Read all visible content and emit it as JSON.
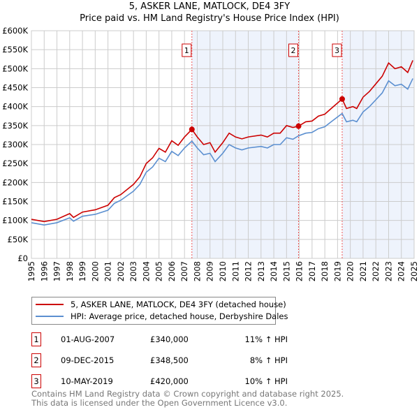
{
  "chart_data": {
    "type": "line",
    "title": "5, ASKER LANE, MATLOCK, DE4 3FY",
    "subtitle": "Price paid vs. HM Land Registry's House Price Index (HPI)",
    "xlim": [
      1995,
      2025
    ],
    "ylim": [
      0,
      600000
    ],
    "x_ticks": [
      "1995",
      "1996",
      "1997",
      "1998",
      "1999",
      "2000",
      "2001",
      "2002",
      "2003",
      "2004",
      "2005",
      "2006",
      "2007",
      "2008",
      "2009",
      "2010",
      "2011",
      "2012",
      "2013",
      "2014",
      "2015",
      "2016",
      "2017",
      "2018",
      "2019",
      "2020",
      "2021",
      "2022",
      "2023",
      "2024",
      "2025"
    ],
    "y_ticks": [
      {
        "v": 0,
        "label": "£0"
      },
      {
        "v": 50000,
        "label": "£50K"
      },
      {
        "v": 100000,
        "label": "£100K"
      },
      {
        "v": 150000,
        "label": "£150K"
      },
      {
        "v": 200000,
        "label": "£200K"
      },
      {
        "v": 250000,
        "label": "£250K"
      },
      {
        "v": 300000,
        "label": "£300K"
      },
      {
        "v": 350000,
        "label": "£350K"
      },
      {
        "v": 400000,
        "label": "£400K"
      },
      {
        "v": 450000,
        "label": "£450K"
      },
      {
        "v": 500000,
        "label": "£500K"
      },
      {
        "v": 550000,
        "label": "£550K"
      },
      {
        "v": 600000,
        "label": "£600K"
      }
    ],
    "x": [
      1995,
      1996,
      1997,
      1998,
      1998.3,
      1999,
      2000,
      2001,
      2001.5,
      2002,
      2003,
      2003.5,
      2004,
      2004.5,
      2005,
      2005.5,
      2006,
      2006.5,
      2007,
      2007.58,
      2008,
      2008.5,
      2009,
      2009.4,
      2010,
      2010.5,
      2011,
      2011.5,
      2012,
      2013,
      2013.5,
      2014,
      2014.5,
      2015,
      2015.5,
      2015.94,
      2016.5,
      2017,
      2017.5,
      2018,
      2018.5,
      2019.36,
      2019.7,
      2020.2,
      2020.5,
      2021,
      2021.5,
      2022,
      2022.5,
      2023,
      2023.5,
      2024,
      2024.5,
      2024.9
    ],
    "series": [
      {
        "name": "5, ASKER LANE, MATLOCK, DE4 3FY (detached house)",
        "color": "#cc0000",
        "values": [
          103,
          97,
          103,
          118,
          108,
          122,
          128,
          140,
          160,
          168,
          195,
          215,
          250,
          265,
          290,
          280,
          310,
          298,
          320,
          340,
          320,
          300,
          305,
          280,
          305,
          330,
          320,
          315,
          320,
          325,
          320,
          330,
          330,
          350,
          345,
          348.5,
          360,
          362,
          375,
          380,
          395,
          420,
          395,
          400,
          395,
          425,
          440,
          460,
          480,
          515,
          500,
          505,
          490,
          522
        ]
      },
      {
        "name": "HPI: Average price, detached house, Derbyshire Dales",
        "color": "#5b8fd0",
        "values": [
          94,
          88,
          94,
          107,
          98,
          111,
          116,
          127,
          145,
          153,
          177,
          195,
          227,
          241,
          264,
          255,
          282,
          271,
          291,
          309,
          291,
          273,
          277,
          255,
          277,
          300,
          291,
          286,
          291,
          295,
          291,
          300,
          300,
          318,
          314,
          323,
          330,
          332,
          342,
          347,
          360,
          382,
          360,
          364,
          360,
          386,
          400,
          418,
          436,
          468,
          455,
          459,
          446,
          474
        ]
      }
    ],
    "value_units": "thousands GBP",
    "sales": [
      {
        "n": "1",
        "date": "01-AUG-2007",
        "year": 2007.58,
        "price": "£340,000",
        "price_k": 340,
        "hpi": "11% ↑ HPI"
      },
      {
        "n": "2",
        "date": "09-DEC-2015",
        "year": 2015.94,
        "price": "£348,500",
        "price_k": 348.5,
        "hpi": "8% ↑ HPI"
      },
      {
        "n": "3",
        "date": "10-MAY-2019",
        "year": 2019.36,
        "price": "£420,000",
        "price_k": 420,
        "hpi": "10% ↑ HPI"
      }
    ],
    "grid": true,
    "legend_position": "below"
  },
  "footer": {
    "line1": "Contains HM Land Registry data © Crown copyright and database right 2025.",
    "line2": "This data is licensed under the Open Government Licence v3.0."
  }
}
